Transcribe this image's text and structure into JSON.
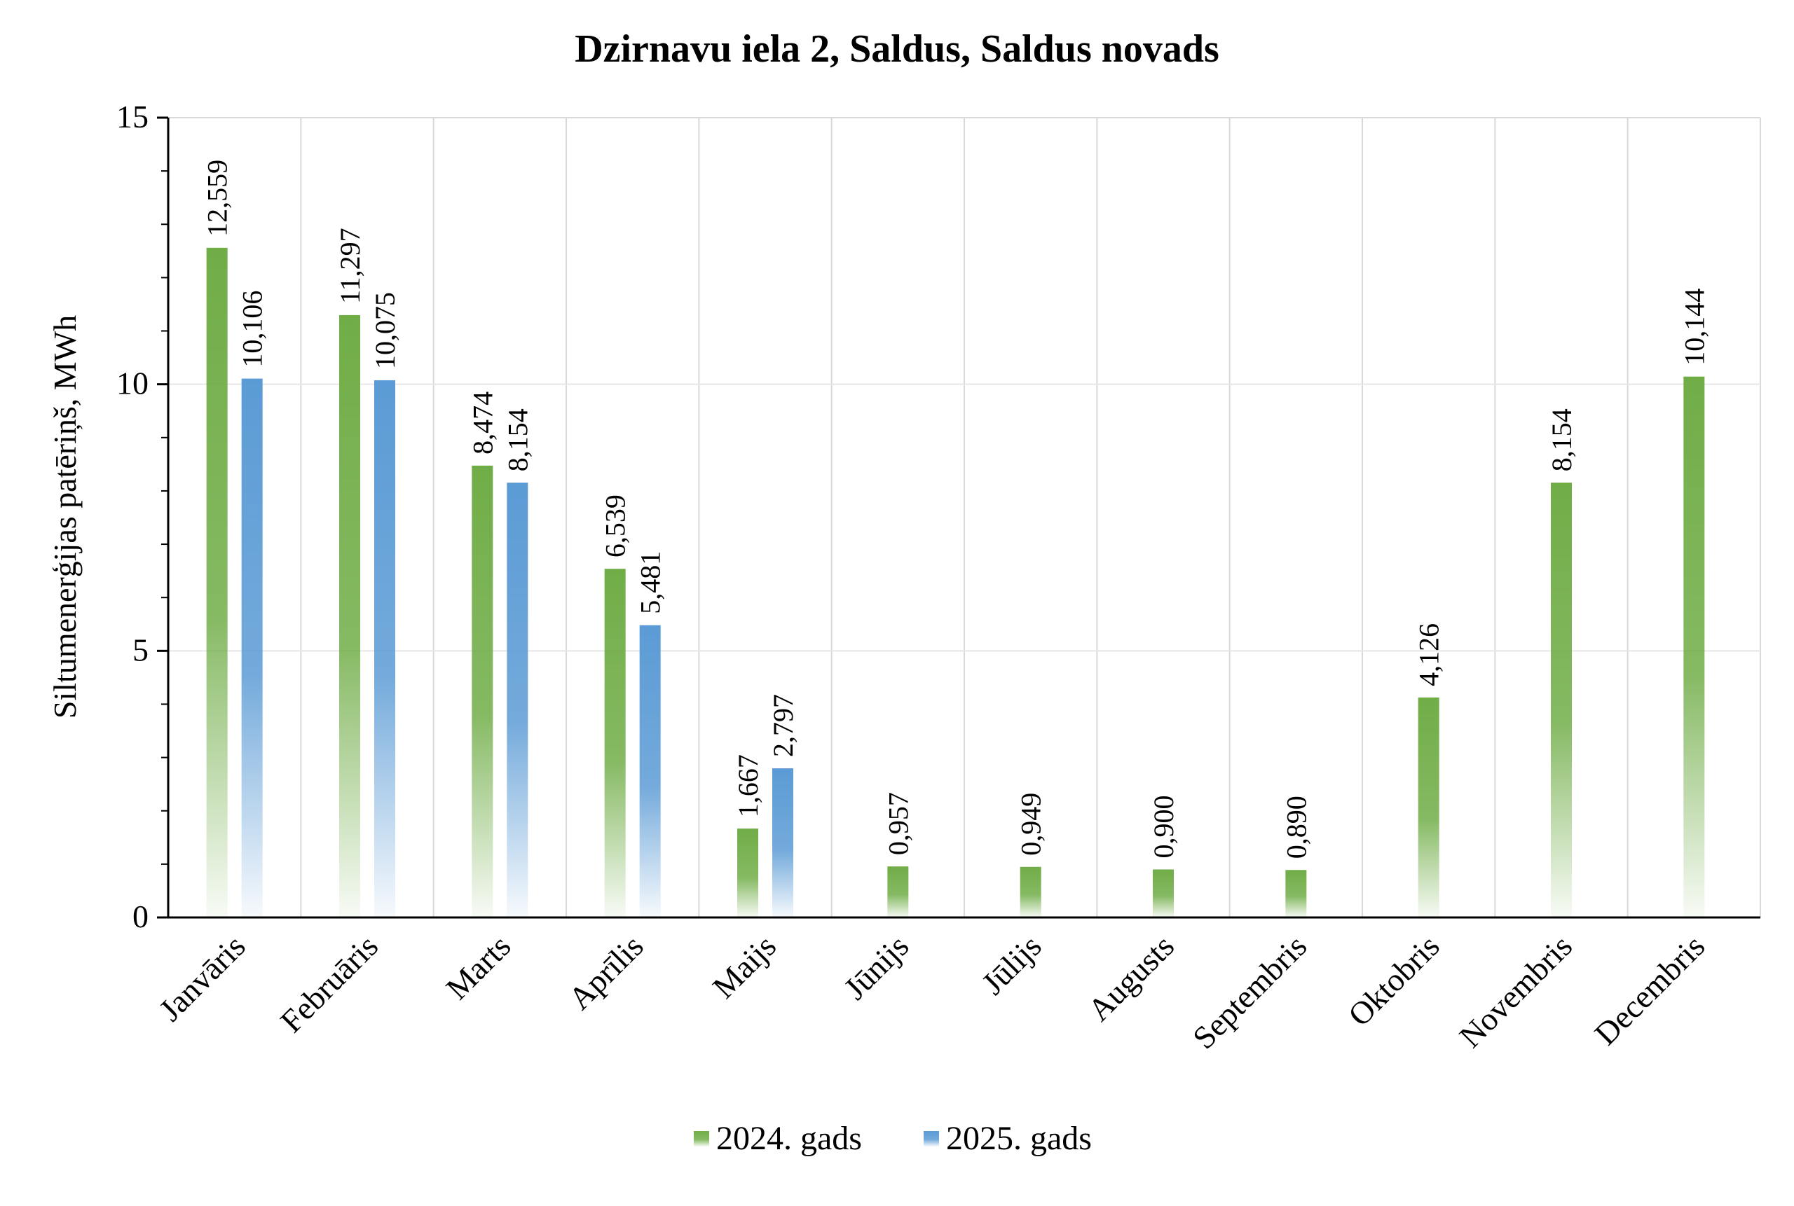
{
  "chart_data": {
    "type": "bar",
    "title": "Dzirnavu iela 2, Saldus, Saldus novads",
    "xlabel": "",
    "ylabel": "Siltumenerģijas patēriņš, MWh",
    "ylim": [
      0,
      15
    ],
    "yticks": [
      "0",
      "5",
      "10",
      "15"
    ],
    "grid": true,
    "legend_position": "bottom",
    "categories": [
      "Janvāris",
      "Februāris",
      "Marts",
      "Aprīlis",
      "Maijs",
      "Jūnijs",
      "Jūlijs",
      "Augusts",
      "Septembris",
      "Oktobris",
      "Novembris",
      "Decembris"
    ],
    "series": [
      {
        "name": "2024. gads",
        "color": "#70ad47",
        "values": [
          12.559,
          11.297,
          8.474,
          6.539,
          1.667,
          0.957,
          0.949,
          0.9,
          0.89,
          4.126,
          8.154,
          10.144
        ],
        "labels": [
          "12,559",
          "11,297",
          "8,474",
          "6,539",
          "1,667",
          "0,957",
          "0,949",
          "0,900",
          "0,890",
          "4,126",
          "8,154",
          "10,144"
        ]
      },
      {
        "name": "2025. gads",
        "color": "#5b9bd5",
        "values": [
          10.106,
          10.075,
          8.154,
          5.481,
          2.797,
          null,
          null,
          null,
          null,
          null,
          null,
          null
        ],
        "labels": [
          "10,106",
          "10,075",
          "8,154",
          "5,481",
          "2,797",
          "",
          "",
          "",
          "",
          "",
          "",
          ""
        ]
      }
    ]
  }
}
